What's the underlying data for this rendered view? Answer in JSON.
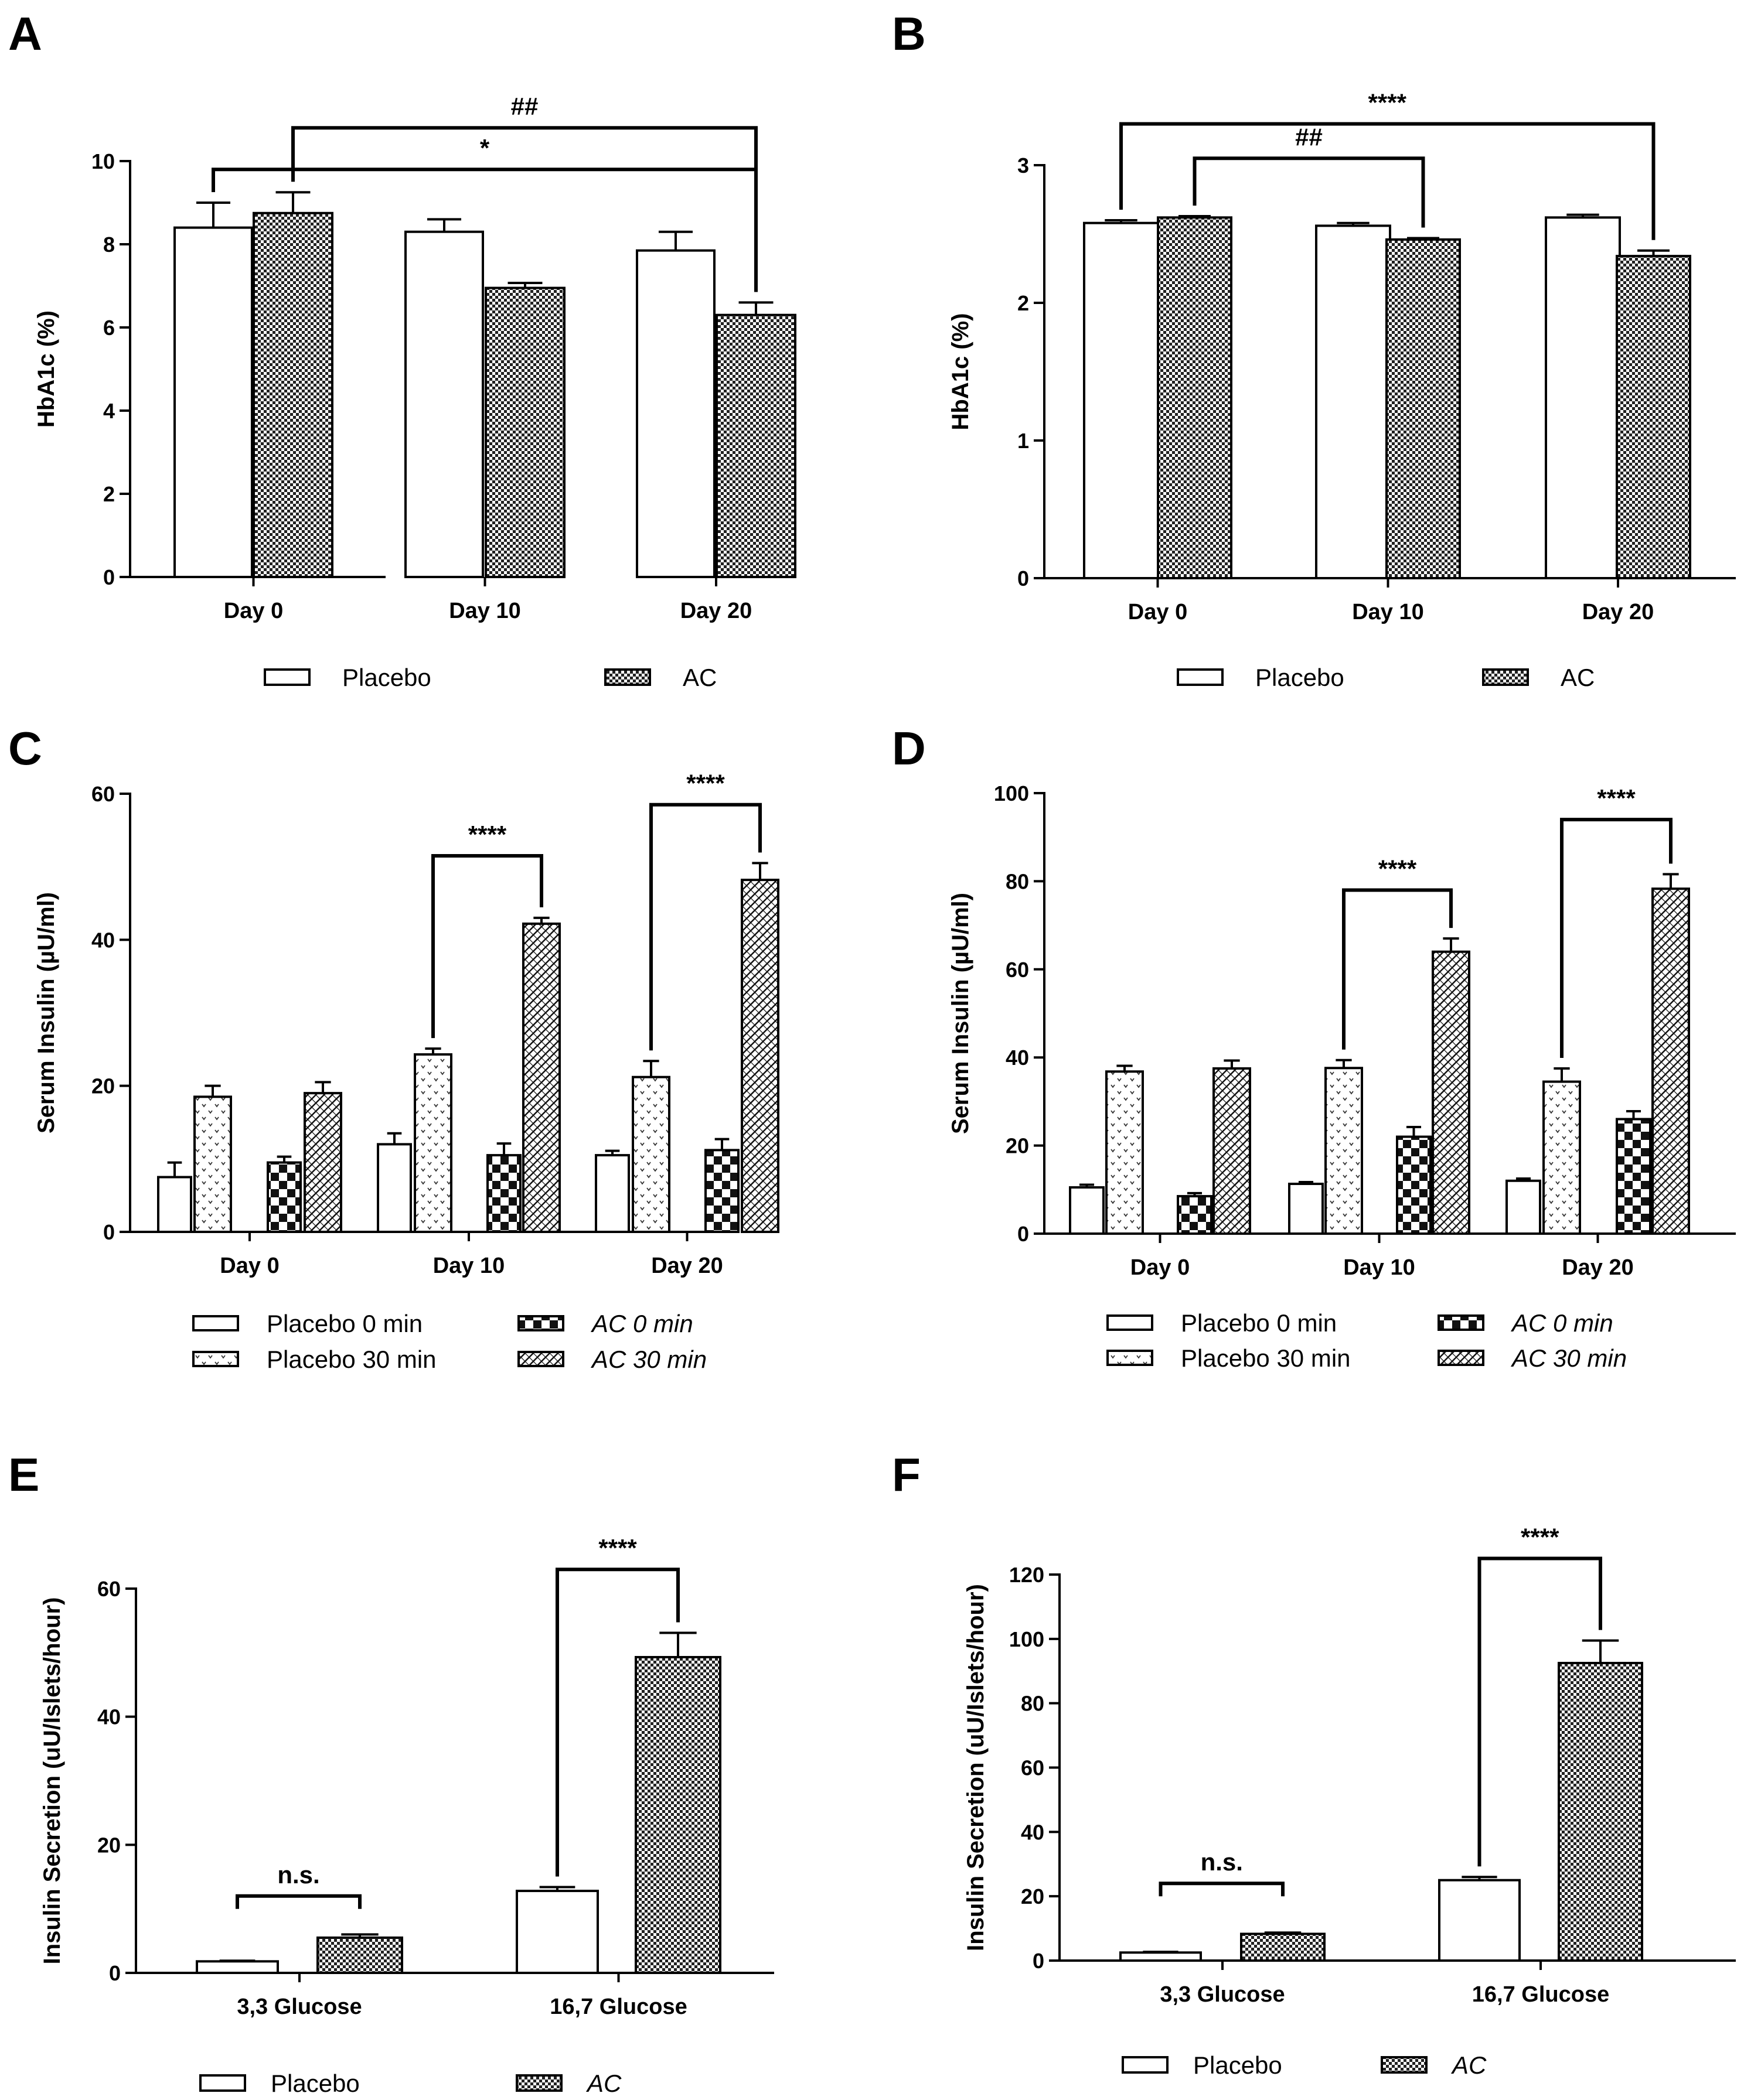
{
  "panels": [
    {
      "id": "A",
      "label": "A",
      "ylabel": "HbA1c (%)",
      "ylim": [
        0,
        10
      ],
      "yticks": [
        "0",
        "2",
        "4",
        "6",
        "8",
        "10"
      ],
      "categories": [
        "Day 0",
        "Day 10",
        "Day 20"
      ],
      "series": [
        {
          "name": "Placebo",
          "pattern": "white",
          "values": [
            8.4,
            8.3,
            7.85
          ],
          "errors": [
            0.6,
            0.3,
            0.45
          ]
        },
        {
          "name": "AC",
          "pattern": "checker",
          "values": [
            8.75,
            6.95,
            6.3
          ],
          "errors": [
            0.5,
            0.12,
            0.3
          ]
        }
      ],
      "annotations": [
        {
          "text": "##",
          "from": [
            0,
            1
          ],
          "to": [
            2,
            1
          ],
          "level": 10.8
        },
        {
          "text": "*",
          "from": [
            0,
            0
          ],
          "to": [
            2,
            1
          ],
          "level": 9.8
        }
      ],
      "legend": [
        {
          "label": "Placebo",
          "pattern": "white",
          "italic": false
        },
        {
          "label": "AC",
          "pattern": "checker",
          "italic": false
        }
      ]
    },
    {
      "id": "B",
      "label": "B",
      "ylabel": "HbA1c (%)",
      "ylim": [
        0,
        3
      ],
      "yticks": [
        "0",
        "1",
        "2",
        "3"
      ],
      "categories": [
        "Day 0",
        "Day 10",
        "Day 20"
      ],
      "series": [
        {
          "name": "Placebo",
          "pattern": "white",
          "values": [
            2.58,
            2.56,
            2.62
          ],
          "errors": [
            0.02,
            0.02,
            0.02
          ]
        },
        {
          "name": "AC",
          "pattern": "checker",
          "values": [
            2.62,
            2.46,
            2.34
          ],
          "errors": [
            0.01,
            0.01,
            0.04
          ]
        }
      ],
      "annotations": [
        {
          "text": "****",
          "from": [
            0,
            0
          ],
          "to": [
            2,
            1
          ],
          "level": 3.3
        },
        {
          "text": "##",
          "from": [
            0,
            1
          ],
          "to": [
            1,
            1
          ],
          "level": 3.05
        }
      ],
      "legend": [
        {
          "label": "Placebo",
          "pattern": "white",
          "italic": false
        },
        {
          "label": "AC",
          "pattern": "checker",
          "italic": false
        }
      ]
    },
    {
      "id": "C",
      "label": "C",
      "ylabel": "Serum Insulin (µU/ml)",
      "ylim": [
        0,
        60
      ],
      "yticks": [
        "0",
        "20",
        "40",
        "60"
      ],
      "categories": [
        "Day 0",
        "Day 10",
        "Day 20"
      ],
      "series": [
        {
          "name": "Placebo 0 min",
          "pattern": "white",
          "values": [
            7.5,
            12.0,
            10.5
          ],
          "errors": [
            2.0,
            1.5,
            0.6
          ]
        },
        {
          "name": "Placebo 30 min",
          "pattern": "vdots",
          "values": [
            18.5,
            24.3,
            21.2
          ],
          "errors": [
            1.5,
            0.8,
            2.2
          ]
        },
        {
          "name": "AC 0 min",
          "pattern": "bigcheck",
          "values": [
            9.5,
            10.5,
            11.2
          ],
          "errors": [
            0.8,
            1.6,
            1.5
          ]
        },
        {
          "name": "AC 30 min",
          "pattern": "diag",
          "values": [
            19.0,
            42.2,
            48.2
          ],
          "errors": [
            1.5,
            0.8,
            2.3
          ]
        }
      ],
      "annotations": [
        {
          "text": "****",
          "from": [
            1,
            1
          ],
          "to": [
            1,
            3
          ],
          "level": 51.5
        },
        {
          "text": "****",
          "from": [
            2,
            1
          ],
          "to": [
            2,
            3
          ],
          "level": 58.5
        }
      ],
      "legend": [
        {
          "label": "Placebo 0 min",
          "pattern": "white",
          "italic": false
        },
        {
          "label": "Placebo 30 min",
          "pattern": "vdots",
          "italic": false
        },
        {
          "label": "AC 0 min",
          "pattern": "bigcheck",
          "italic": true
        },
        {
          "label": "AC 30 min",
          "pattern": "diag",
          "italic": true
        }
      ]
    },
    {
      "id": "D",
      "label": "D",
      "ylabel": "Serum Insulin (µU/ml)",
      "ylim": [
        0,
        100
      ],
      "yticks": [
        "0",
        "20",
        "40",
        "60",
        "80",
        "100"
      ],
      "categories": [
        "Day 0",
        "Day 10",
        "Day 20"
      ],
      "series": [
        {
          "name": "Placebo 0 min",
          "pattern": "white",
          "values": [
            10.5,
            11.3,
            12.0
          ],
          "errors": [
            0.6,
            0.4,
            0.5
          ]
        },
        {
          "name": "Placebo 30 min",
          "pattern": "vdots",
          "values": [
            36.8,
            37.6,
            34.5
          ],
          "errors": [
            1.3,
            1.8,
            3.0
          ]
        },
        {
          "name": "AC 0 min",
          "pattern": "bigcheck",
          "values": [
            8.5,
            22.0,
            26.0
          ],
          "errors": [
            0.7,
            2.2,
            1.8
          ]
        },
        {
          "name": "AC 30 min",
          "pattern": "diag",
          "values": [
            37.5,
            64.0,
            78.3
          ],
          "errors": [
            1.8,
            3.0,
            3.3
          ]
        }
      ],
      "annotations": [
        {
          "text": "****",
          "from": [
            1,
            1
          ],
          "to": [
            1,
            3
          ],
          "level": 78.0
        },
        {
          "text": "****",
          "from": [
            2,
            1
          ],
          "to": [
            2,
            3
          ],
          "level": 94.0
        }
      ],
      "legend": [
        {
          "label": "Placebo 0 min",
          "pattern": "white",
          "italic": false
        },
        {
          "label": "Placebo 30 min",
          "pattern": "vdots",
          "italic": false
        },
        {
          "label": "AC 0 min",
          "pattern": "bigcheck",
          "italic": true
        },
        {
          "label": "AC 30 min",
          "pattern": "diag",
          "italic": true
        }
      ]
    },
    {
      "id": "E",
      "label": "E",
      "ylabel": "Insulin Secretion (uU/Islets/hour)",
      "ylim": [
        0,
        60
      ],
      "yticks": [
        "0",
        "20",
        "40",
        "60"
      ],
      "categories": [
        "3,3 Glucose",
        "16,7 Glucose"
      ],
      "series": [
        {
          "name": "Placebo",
          "pattern": "white",
          "values": [
            1.8,
            12.8
          ],
          "errors": [
            0.1,
            0.6
          ]
        },
        {
          "name": "AC",
          "pattern": "checker",
          "values": [
            5.5,
            49.3
          ],
          "errors": [
            0.5,
            3.8
          ]
        }
      ],
      "annotations": [
        {
          "text": "n.s.",
          "from": [
            0,
            0
          ],
          "to": [
            0,
            1
          ],
          "level": 12.0,
          "bracket": "flat"
        },
        {
          "text": "****",
          "from": [
            1,
            0
          ],
          "to": [
            1,
            1
          ],
          "level": 63.0
        }
      ],
      "legend": [
        {
          "label": "Placebo",
          "pattern": "white",
          "italic": false
        },
        {
          "label": "AC",
          "pattern": "checker",
          "italic": true
        }
      ]
    },
    {
      "id": "F",
      "label": "F",
      "ylabel": "Insulin Secretion (uU/Islets/hour)",
      "ylim": [
        0,
        120
      ],
      "yticks": [
        "0",
        "20",
        "40",
        "60",
        "80",
        "100",
        "120"
      ],
      "categories": [
        "3,3 Glucose",
        "16,7 Glucose"
      ],
      "series": [
        {
          "name": "Placebo",
          "pattern": "white",
          "values": [
            2.5,
            25.0
          ],
          "errors": [
            0.2,
            1.0
          ]
        },
        {
          "name": "AC",
          "pattern": "checker",
          "values": [
            8.3,
            92.5
          ],
          "errors": [
            0.4,
            7.0
          ]
        }
      ],
      "annotations": [
        {
          "text": "n.s.",
          "from": [
            0,
            0
          ],
          "to": [
            0,
            1
          ],
          "level": 24.0,
          "bracket": "flat"
        },
        {
          "text": "****",
          "from": [
            1,
            0
          ],
          "to": [
            1,
            1
          ],
          "level": 125.0
        }
      ],
      "legend": [
        {
          "label": "Placebo",
          "pattern": "white",
          "italic": false
        },
        {
          "label": "AC",
          "pattern": "checker",
          "italic": true
        }
      ]
    }
  ],
  "chart_data": [
    {
      "type": "bar",
      "title": "A",
      "ylabel": "HbA1c (%)",
      "ylim": [
        0,
        10
      ],
      "categories": [
        "Day 0",
        "Day 10",
        "Day 20"
      ],
      "series": [
        {
          "name": "Placebo",
          "values": [
            8.4,
            8.3,
            7.85
          ]
        },
        {
          "name": "AC",
          "values": [
            8.75,
            6.95,
            6.3
          ]
        }
      ]
    },
    {
      "type": "bar",
      "title": "B",
      "ylabel": "HbA1c (%)",
      "ylim": [
        0,
        3
      ],
      "categories": [
        "Day 0",
        "Day 10",
        "Day 20"
      ],
      "series": [
        {
          "name": "Placebo",
          "values": [
            2.58,
            2.56,
            2.62
          ]
        },
        {
          "name": "AC",
          "values": [
            2.62,
            2.46,
            2.34
          ]
        }
      ]
    },
    {
      "type": "bar",
      "title": "C",
      "ylabel": "Serum Insulin (µU/ml)",
      "ylim": [
        0,
        60
      ],
      "categories": [
        "Day 0",
        "Day 10",
        "Day 20"
      ],
      "series": [
        {
          "name": "Placebo 0 min",
          "values": [
            7.5,
            12.0,
            10.5
          ]
        },
        {
          "name": "Placebo 30 min",
          "values": [
            18.5,
            24.3,
            21.2
          ]
        },
        {
          "name": "AC 0 min",
          "values": [
            9.5,
            10.5,
            11.2
          ]
        },
        {
          "name": "AC 30 min",
          "values": [
            19.0,
            42.2,
            48.2
          ]
        }
      ]
    },
    {
      "type": "bar",
      "title": "D",
      "ylabel": "Serum Insulin (µU/ml)",
      "ylim": [
        0,
        100
      ],
      "categories": [
        "Day 0",
        "Day 10",
        "Day 20"
      ],
      "series": [
        {
          "name": "Placebo 0 min",
          "values": [
            10.5,
            11.3,
            12.0
          ]
        },
        {
          "name": "Placebo 30 min",
          "values": [
            36.8,
            37.6,
            34.5
          ]
        },
        {
          "name": "AC 0 min",
          "values": [
            8.5,
            22.0,
            26.0
          ]
        },
        {
          "name": "AC 30 min",
          "values": [
            37.5,
            64.0,
            78.3
          ]
        }
      ]
    },
    {
      "type": "bar",
      "title": "E",
      "ylabel": "Insulin Secretion (uU/Islets/hour)",
      "ylim": [
        0,
        60
      ],
      "categories": [
        "3,3 Glucose",
        "16,7 Glucose"
      ],
      "series": [
        {
          "name": "Placebo",
          "values": [
            1.8,
            12.8
          ]
        },
        {
          "name": "AC",
          "values": [
            5.5,
            49.3
          ]
        }
      ]
    },
    {
      "type": "bar",
      "title": "F",
      "ylabel": "Insulin Secretion (uU/Islets/hour)",
      "ylim": [
        0,
        120
      ],
      "categories": [
        "3,3 Glucose",
        "16,7 Glucose"
      ],
      "series": [
        {
          "name": "Placebo",
          "values": [
            2.5,
            25.0
          ]
        },
        {
          "name": "AC",
          "values": [
            8.3,
            92.5
          ]
        }
      ]
    }
  ]
}
